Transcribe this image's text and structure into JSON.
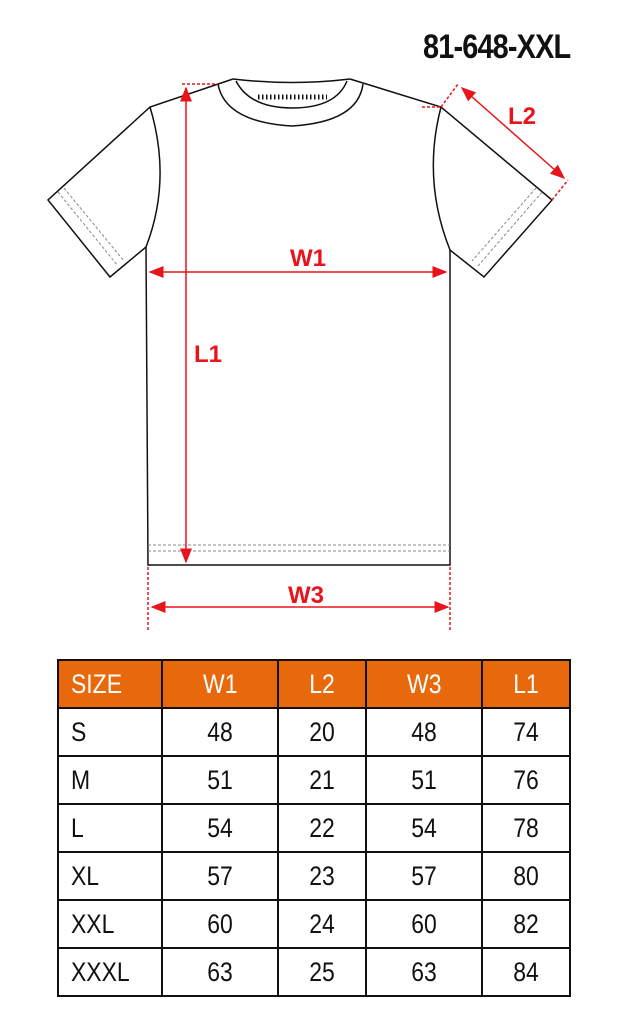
{
  "product_code": "81-648-XXL",
  "labels": {
    "w1": "W1",
    "l1": "L1",
    "l2": "L2",
    "w3": "W3"
  },
  "colors": {
    "dimension": "#e8141b",
    "header": "#e8680c"
  },
  "table": {
    "headers": [
      "SIZE",
      "W1",
      "L2",
      "W3",
      "L1"
    ],
    "rows": [
      [
        "S",
        "48",
        "20",
        "48",
        "74"
      ],
      [
        "M",
        "51",
        "21",
        "51",
        "76"
      ],
      [
        "L",
        "54",
        "22",
        "54",
        "78"
      ],
      [
        "XL",
        "57",
        "23",
        "57",
        "80"
      ],
      [
        "XXL",
        "60",
        "24",
        "60",
        "82"
      ],
      [
        "XXXL",
        "63",
        "25",
        "63",
        "84"
      ]
    ]
  }
}
